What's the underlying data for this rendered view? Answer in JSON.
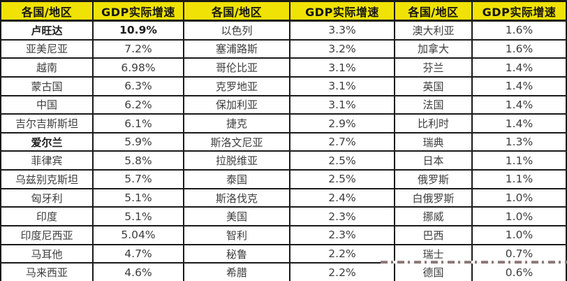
{
  "colors": {
    "header_bg": "#f0e205",
    "grid_border": "#1a1a1a",
    "cell_text": "#3d3d3d",
    "header_text": "#141414",
    "row_bg": "#ffffff"
  },
  "chart_data": {
    "type": "table",
    "column_headers": [
      "各国/地区",
      "GDP实际增速",
      "各国/地区",
      "GDP实际增速",
      "各国/地区",
      "GDP实际增速"
    ],
    "groups": [
      {
        "rows": [
          {
            "region": "卢旺达",
            "growth": "10.9%",
            "bold_region": true,
            "bold_growth": true
          },
          {
            "region": "亚美尼亚",
            "growth": "7.2%",
            "bold_region": false,
            "bold_growth": false
          },
          {
            "region": "越南",
            "growth": "6.98%",
            "bold_region": false,
            "bold_growth": false
          },
          {
            "region": "蒙古国",
            "growth": "6.3%",
            "bold_region": false,
            "bold_growth": false
          },
          {
            "region": "中国",
            "growth": "6.2%",
            "bold_region": false,
            "bold_growth": false
          },
          {
            "region": "吉尔吉斯斯坦",
            "growth": "6.1%",
            "bold_region": false,
            "bold_growth": false
          },
          {
            "region": "爱尔兰",
            "growth": "5.9%",
            "bold_region": true,
            "bold_growth": false
          },
          {
            "region": "菲律宾",
            "growth": "5.8%",
            "bold_region": false,
            "bold_growth": false
          },
          {
            "region": "乌兹别克斯坦",
            "growth": "5.7%",
            "bold_region": false,
            "bold_growth": false
          },
          {
            "region": "匈牙利",
            "growth": "5.1%",
            "bold_region": false,
            "bold_growth": false
          },
          {
            "region": "印度",
            "growth": "5.1%",
            "bold_region": false,
            "bold_growth": false
          },
          {
            "region": "印度尼西亚",
            "growth": "5.04%",
            "bold_region": false,
            "bold_growth": false
          },
          {
            "region": "马耳他",
            "growth": "4.7%",
            "bold_region": false,
            "bold_growth": false
          },
          {
            "region": "马来西亚",
            "growth": "4.6%",
            "bold_region": false,
            "bold_growth": false
          }
        ]
      },
      {
        "rows": [
          {
            "region": "以色列",
            "growth": "3.3%",
            "bold_region": false,
            "bold_growth": false
          },
          {
            "region": "塞浦路斯",
            "growth": "3.2%",
            "bold_region": false,
            "bold_growth": false
          },
          {
            "region": "哥伦比亚",
            "growth": "3.1%",
            "bold_region": false,
            "bold_growth": false
          },
          {
            "region": "克罗地亚",
            "growth": "3.1%",
            "bold_region": false,
            "bold_growth": false
          },
          {
            "region": "保加利亚",
            "growth": "3.1%",
            "bold_region": false,
            "bold_growth": false
          },
          {
            "region": "捷克",
            "growth": "2.9%",
            "bold_region": false,
            "bold_growth": false
          },
          {
            "region": "斯洛文尼亚",
            "growth": "2.7%",
            "bold_region": false,
            "bold_growth": false
          },
          {
            "region": "拉脱维亚",
            "growth": "2.5%",
            "bold_region": false,
            "bold_growth": false
          },
          {
            "region": "泰国",
            "growth": "2.5%",
            "bold_region": false,
            "bold_growth": false
          },
          {
            "region": "斯洛伐克",
            "growth": "2.4%",
            "bold_region": false,
            "bold_growth": false
          },
          {
            "region": "美国",
            "growth": "2.3%",
            "bold_region": false,
            "bold_growth": false
          },
          {
            "region": "智利",
            "growth": "2.3%",
            "bold_region": false,
            "bold_growth": false
          },
          {
            "region": "秘鲁",
            "growth": "2.2%",
            "bold_region": false,
            "bold_growth": false
          },
          {
            "region": "希腊",
            "growth": "2.2%",
            "bold_region": false,
            "bold_growth": false
          }
        ]
      },
      {
        "rows": [
          {
            "region": "澳大利亚",
            "growth": "1.6%",
            "bold_region": false,
            "bold_growth": false
          },
          {
            "region": "加拿大",
            "growth": "1.6%",
            "bold_region": false,
            "bold_growth": false
          },
          {
            "region": "芬兰",
            "growth": "1.4%",
            "bold_region": false,
            "bold_growth": false
          },
          {
            "region": "英国",
            "growth": "1.4%",
            "bold_region": false,
            "bold_growth": false
          },
          {
            "region": "法国",
            "growth": "1.4%",
            "bold_region": false,
            "bold_growth": false
          },
          {
            "region": "比利时",
            "growth": "1.4%",
            "bold_region": false,
            "bold_growth": false
          },
          {
            "region": "瑞典",
            "growth": "1.3%",
            "bold_region": false,
            "bold_growth": false
          },
          {
            "region": "日本",
            "growth": "1.1%",
            "bold_region": false,
            "bold_growth": false
          },
          {
            "region": "俄罗斯",
            "growth": "1.1%",
            "bold_region": false,
            "bold_growth": false
          },
          {
            "region": "白俄罗斯",
            "growth": "1.0%",
            "bold_region": false,
            "bold_growth": false
          },
          {
            "region": "挪威",
            "growth": "1.0%",
            "bold_region": false,
            "bold_growth": false
          },
          {
            "region": "巴西",
            "growth": "1.0%",
            "bold_region": false,
            "bold_growth": false
          },
          {
            "region": "瑞士",
            "growth": "0.7%",
            "bold_region": false,
            "bold_growth": false
          },
          {
            "region": "德国",
            "growth": "0.6%",
            "bold_region": false,
            "bold_growth": false
          }
        ]
      }
    ]
  }
}
